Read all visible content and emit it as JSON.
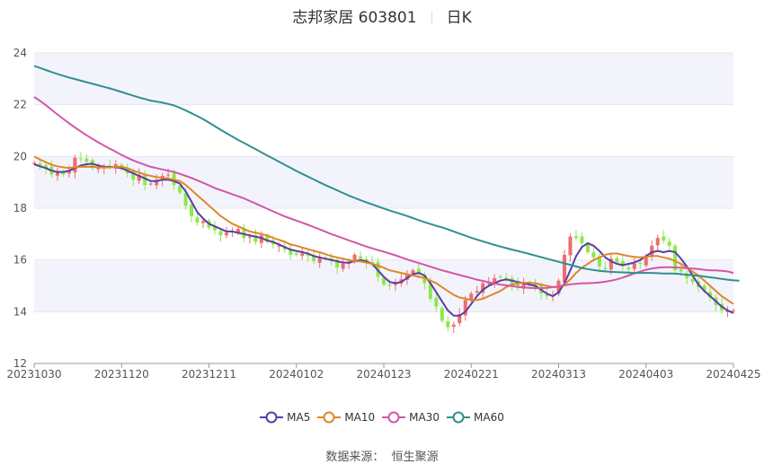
{
  "header": {
    "title": "志邦家居 603801",
    "period": "日K"
  },
  "source_label": "数据来源：",
  "source_name": "恒生聚源",
  "colors": {
    "up": "#f06c6c",
    "down": "#8ee84a",
    "MA5": "#5b3ea5",
    "MA10": "#e0862a",
    "MA30": "#d456a8",
    "MA60": "#2f9090",
    "grid": "#e6e6ef",
    "band": "#f3f4fb"
  },
  "chart_data": {
    "type": "candlestick",
    "title": "志邦家居 603801",
    "ylim": [
      12,
      24
    ],
    "yticks": [
      12,
      14,
      16,
      18,
      20,
      22,
      24
    ],
    "xticks": [
      {
        "label": "20231030",
        "index": 0
      },
      {
        "label": "20231120",
        "index": 15
      },
      {
        "label": "20231211",
        "index": 30
      },
      {
        "label": "20240102",
        "index": 45
      },
      {
        "label": "20240123",
        "index": 60
      },
      {
        "label": "20240221",
        "index": 75
      },
      {
        "label": "20240313",
        "index": 90
      },
      {
        "label": "20240403",
        "index": 105
      },
      {
        "label": "20240425",
        "index": 120
      }
    ],
    "num_bars": 121,
    "closes": [
      19.75,
      19.65,
      19.55,
      19.3,
      19.4,
      19.3,
      19.45,
      19.95,
      19.9,
      19.8,
      19.55,
      19.55,
      19.6,
      19.6,
      19.7,
      19.5,
      19.35,
      19.1,
      19.3,
      18.9,
      18.95,
      19.1,
      19.25,
      19.3,
      18.9,
      18.6,
      18.1,
      17.7,
      17.45,
      17.5,
      17.25,
      17.15,
      16.95,
      17.05,
      17.1,
      17.2,
      16.85,
      16.9,
      16.7,
      16.95,
      16.7,
      16.6,
      16.55,
      16.4,
      16.2,
      16.2,
      16.25,
      16.15,
      15.95,
      16.1,
      16.05,
      15.95,
      15.7,
      15.85,
      15.9,
      16.2,
      16.05,
      15.9,
      15.85,
      15.35,
      15.05,
      15,
      15.15,
      15.25,
      15.45,
      15.6,
      15.45,
      15.1,
      14.5,
      14.2,
      13.65,
      13.4,
      13.5,
      13.9,
      14.45,
      14.7,
      14.8,
      15.1,
      15.1,
      15.3,
      15.35,
      15.3,
      15.05,
      14.95,
      15.15,
      15.05,
      14.95,
      14.7,
      14.6,
      14.65,
      15.2,
      16.2,
      16.9,
      16.85,
      16.65,
      16.3,
      16.1,
      15.75,
      15.65,
      16.05,
      15.9,
      15.75,
      15.65,
      15.85,
      15.85,
      16.15,
      16.55,
      16.85,
      16.75,
      16.55,
      15.6,
      15.55,
      15.3,
      15.15,
      14.95,
      14.8,
      14.55,
      14.25,
      14.05,
      14.05,
      14.05
    ],
    "series": [
      {
        "name": "MA5",
        "values": [
          19.7,
          19.62,
          19.55,
          19.45,
          19.4,
          19.4,
          19.45,
          19.55,
          19.65,
          19.7,
          19.72,
          19.65,
          19.6,
          19.6,
          19.58,
          19.55,
          19.45,
          19.35,
          19.25,
          19.15,
          19.05,
          19.05,
          19.1,
          19.1,
          19.05,
          18.95,
          18.65,
          18.25,
          17.85,
          17.6,
          17.4,
          17.3,
          17.2,
          17.1,
          17.1,
          17.05,
          17.0,
          16.95,
          16.9,
          16.85,
          16.75,
          16.7,
          16.6,
          16.5,
          16.4,
          16.35,
          16.3,
          16.25,
          16.15,
          16.1,
          16.05,
          16.0,
          15.95,
          15.9,
          15.9,
          15.95,
          16.0,
          15.95,
          15.85,
          15.6,
          15.35,
          15.15,
          15.1,
          15.15,
          15.3,
          15.45,
          15.5,
          15.4,
          15.1,
          14.75,
          14.4,
          14.05,
          13.85,
          13.85,
          14.0,
          14.3,
          14.6,
          14.85,
          15.0,
          15.1,
          15.2,
          15.25,
          15.2,
          15.15,
          15.1,
          15.05,
          15.0,
          14.85,
          14.7,
          14.6,
          14.75,
          15.1,
          15.6,
          16.15,
          16.5,
          16.65,
          16.55,
          16.35,
          16.1,
          15.95,
          15.85,
          15.8,
          15.85,
          15.9,
          16.0,
          16.15,
          16.3,
          16.35,
          16.3,
          16.35,
          16.3,
          16.05,
          15.75,
          15.4,
          15.05,
          14.8,
          14.6,
          14.4,
          14.2,
          14.05,
          13.95
        ]
      },
      {
        "name": "MA10",
        "values": [
          20.0,
          19.88,
          19.78,
          19.68,
          19.62,
          19.58,
          19.55,
          19.58,
          19.6,
          19.6,
          19.6,
          19.58,
          19.57,
          19.58,
          19.6,
          19.6,
          19.55,
          19.45,
          19.38,
          19.3,
          19.25,
          19.2,
          19.18,
          19.15,
          19.1,
          19.05,
          18.9,
          18.7,
          18.5,
          18.3,
          18.1,
          17.9,
          17.7,
          17.55,
          17.4,
          17.3,
          17.2,
          17.1,
          17.05,
          17.0,
          16.95,
          16.85,
          16.78,
          16.7,
          16.6,
          16.55,
          16.48,
          16.42,
          16.35,
          16.3,
          16.22,
          16.15,
          16.1,
          16.05,
          16.0,
          15.95,
          15.95,
          15.9,
          15.85,
          15.78,
          15.7,
          15.6,
          15.55,
          15.5,
          15.45,
          15.4,
          15.35,
          15.3,
          15.2,
          15.1,
          14.95,
          14.8,
          14.65,
          14.55,
          14.5,
          14.45,
          14.45,
          14.5,
          14.6,
          14.7,
          14.8,
          14.95,
          15.05,
          15.1,
          15.12,
          15.12,
          15.1,
          15.05,
          15.0,
          14.95,
          14.95,
          15.05,
          15.25,
          15.5,
          15.7,
          15.85,
          16.0,
          16.1,
          16.2,
          16.25,
          16.25,
          16.2,
          16.15,
          16.12,
          16.1,
          16.12,
          16.15,
          16.15,
          16.1,
          16.05,
          15.95,
          15.85,
          15.7,
          15.55,
          15.4,
          15.2,
          15.0,
          14.8,
          14.6,
          14.45,
          14.3
        ]
      },
      {
        "name": "MA30",
        "values": [
          22.3,
          22.15,
          21.98,
          21.8,
          21.62,
          21.45,
          21.28,
          21.12,
          20.97,
          20.82,
          20.68,
          20.55,
          20.42,
          20.3,
          20.18,
          20.06,
          19.95,
          19.85,
          19.76,
          19.68,
          19.6,
          19.55,
          19.5,
          19.45,
          19.4,
          19.33,
          19.25,
          19.17,
          19.08,
          18.98,
          18.88,
          18.78,
          18.7,
          18.62,
          18.54,
          18.46,
          18.38,
          18.28,
          18.18,
          18.08,
          17.98,
          17.88,
          17.78,
          17.68,
          17.6,
          17.52,
          17.44,
          17.36,
          17.27,
          17.18,
          17.09,
          17.0,
          16.92,
          16.84,
          16.76,
          16.68,
          16.6,
          16.52,
          16.45,
          16.38,
          16.32,
          16.25,
          16.18,
          16.1,
          16.02,
          15.95,
          15.88,
          15.81,
          15.74,
          15.67,
          15.6,
          15.54,
          15.48,
          15.42,
          15.36,
          15.3,
          15.24,
          15.19,
          15.14,
          15.09,
          15.05,
          15.02,
          14.99,
          14.96,
          14.94,
          14.92,
          14.91,
          14.91,
          14.92,
          14.95,
          14.98,
          15.02,
          15.06,
          15.08,
          15.1,
          15.1,
          15.11,
          15.13,
          15.16,
          15.2,
          15.25,
          15.32,
          15.4,
          15.48,
          15.55,
          15.62,
          15.67,
          15.7,
          15.72,
          15.72,
          15.71,
          15.7,
          15.68,
          15.67,
          15.65,
          15.62,
          15.6,
          15.6,
          15.58,
          15.56,
          15.5
        ]
      },
      {
        "name": "MA60",
        "values": [
          23.5,
          23.42,
          23.34,
          23.26,
          23.19,
          23.12,
          23.05,
          22.99,
          22.93,
          22.87,
          22.81,
          22.75,
          22.69,
          22.63,
          22.56,
          22.49,
          22.42,
          22.35,
          22.28,
          22.22,
          22.16,
          22.12,
          22.08,
          22.03,
          21.97,
          21.88,
          21.78,
          21.67,
          21.56,
          21.44,
          21.31,
          21.17,
          21.03,
          20.9,
          20.77,
          20.64,
          20.52,
          20.4,
          20.28,
          20.16,
          20.04,
          19.92,
          19.8,
          19.68,
          19.56,
          19.44,
          19.33,
          19.22,
          19.11,
          19.0,
          18.89,
          18.79,
          18.69,
          18.59,
          18.49,
          18.4,
          18.31,
          18.23,
          18.15,
          18.07,
          17.99,
          17.91,
          17.84,
          17.77,
          17.7,
          17.62,
          17.54,
          17.46,
          17.39,
          17.32,
          17.26,
          17.18,
          17.1,
          17.02,
          16.94,
          16.86,
          16.79,
          16.72,
          16.65,
          16.58,
          16.52,
          16.46,
          16.4,
          16.35,
          16.29,
          16.23,
          16.17,
          16.11,
          16.05,
          15.99,
          15.93,
          15.87,
          15.81,
          15.75,
          15.69,
          15.65,
          15.61,
          15.58,
          15.56,
          15.54,
          15.53,
          15.52,
          15.51,
          15.5,
          15.5,
          15.5,
          15.5,
          15.49,
          15.48,
          15.48,
          15.47,
          15.45,
          15.43,
          15.41,
          15.39,
          15.36,
          15.33,
          15.3,
          15.27,
          15.24,
          15.21,
          15.2
        ]
      }
    ],
    "legend": [
      "MA5",
      "MA10",
      "MA30",
      "MA60"
    ],
    "legend_position": "bottom",
    "grid": true
  }
}
